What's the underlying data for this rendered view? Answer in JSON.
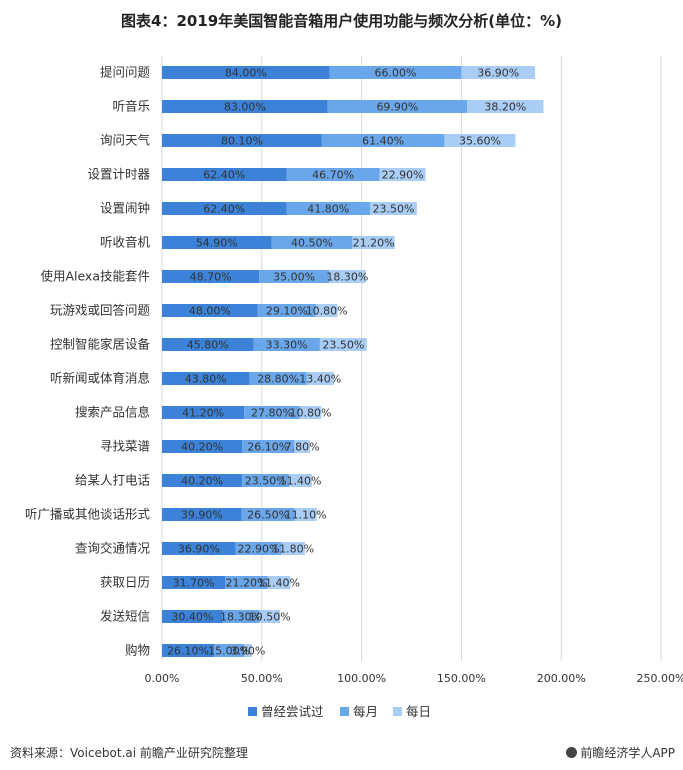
{
  "title": "图表4：2019年美国智能音箱用户使用功能与频次分析(单位：%)",
  "footer": {
    "source": "资料来源：Voicebot.ai 前瞻产业研究院整理",
    "brand": "前瞻经济学人APP"
  },
  "colors": {
    "series_1": "#3b82d8",
    "series_2": "#6aa6ea",
    "series_3": "#a9cdf5",
    "grid": "#d9d9d9"
  },
  "chart_data": {
    "type": "bar",
    "orientation": "horizontal",
    "stacked": true,
    "categories": [
      "提问问题",
      "听音乐",
      "询问天气",
      "设置计时器",
      "设置闹钟",
      "听收音机",
      "使用Alexa技能套件",
      "玩游戏或回答问题",
      "控制智能家居设备",
      "听新闻或体育消息",
      "搜索产品信息",
      "寻找菜谱",
      "给某人打电话",
      "听广播或其他谈话形式",
      "查询交通情况",
      "获取日历",
      "发送短信",
      "购物"
    ],
    "series": [
      {
        "name": "曾经尝试过",
        "values": [
          84.0,
          83.0,
          80.1,
          62.4,
          62.4,
          54.9,
          48.7,
          48.0,
          45.8,
          43.8,
          41.2,
          40.2,
          40.2,
          39.9,
          36.9,
          31.7,
          30.4,
          26.1
        ],
        "labels": [
          "84.00%",
          "83.00%",
          "80.10%",
          "62.40%",
          "62.40%",
          "54.90%",
          "48.70%",
          "48.00%",
          "45.80%",
          "43.80%",
          "41.20%",
          "40.20%",
          "40.20%",
          "39.90%",
          "36.90%",
          "31.70%",
          "30.40%",
          "26.10%"
        ]
      },
      {
        "name": "每月",
        "values": [
          66.0,
          69.9,
          61.4,
          46.7,
          41.8,
          40.5,
          35.0,
          29.1,
          33.3,
          28.8,
          27.8,
          26.1,
          23.5,
          26.5,
          22.9,
          21.2,
          18.3,
          15.0
        ],
        "labels": [
          "66.00%",
          "69.90%",
          "61.40%",
          "46.70%",
          "41.80%",
          "40.50%",
          "35.00%",
          "29.10%",
          "33.30%",
          "28.80%",
          "27.80%",
          "26.10%",
          "23.50%",
          "26.50%",
          "22.90%",
          "21.20%",
          "18.30%",
          "15.00%"
        ]
      },
      {
        "name": "每日",
        "values": [
          36.9,
          38.2,
          35.6,
          22.9,
          23.5,
          21.2,
          18.3,
          10.8,
          23.5,
          13.4,
          10.8,
          7.8,
          11.4,
          11.1,
          11.8,
          11.4,
          10.5,
          3.9
        ],
        "labels": [
          "36.90%",
          "38.20%",
          "35.60%",
          "22.90%",
          "23.50%",
          "21.20%",
          "18.30%",
          "10.80%",
          "23.50%",
          "13.40%",
          "10.80%",
          "7.80%",
          "11.40%",
          "11.10%",
          "11.80%",
          "11.40%",
          "10.50%",
          "3.90%"
        ]
      }
    ],
    "xlim": [
      0,
      250
    ],
    "xticks": [
      0,
      50,
      100,
      150,
      200,
      250
    ],
    "xtick_labels": [
      "0.00%",
      "50.00%",
      "100.00%",
      "150.00%",
      "200.00%",
      "250.00%"
    ],
    "grid": true,
    "legend_position": "bottom"
  }
}
